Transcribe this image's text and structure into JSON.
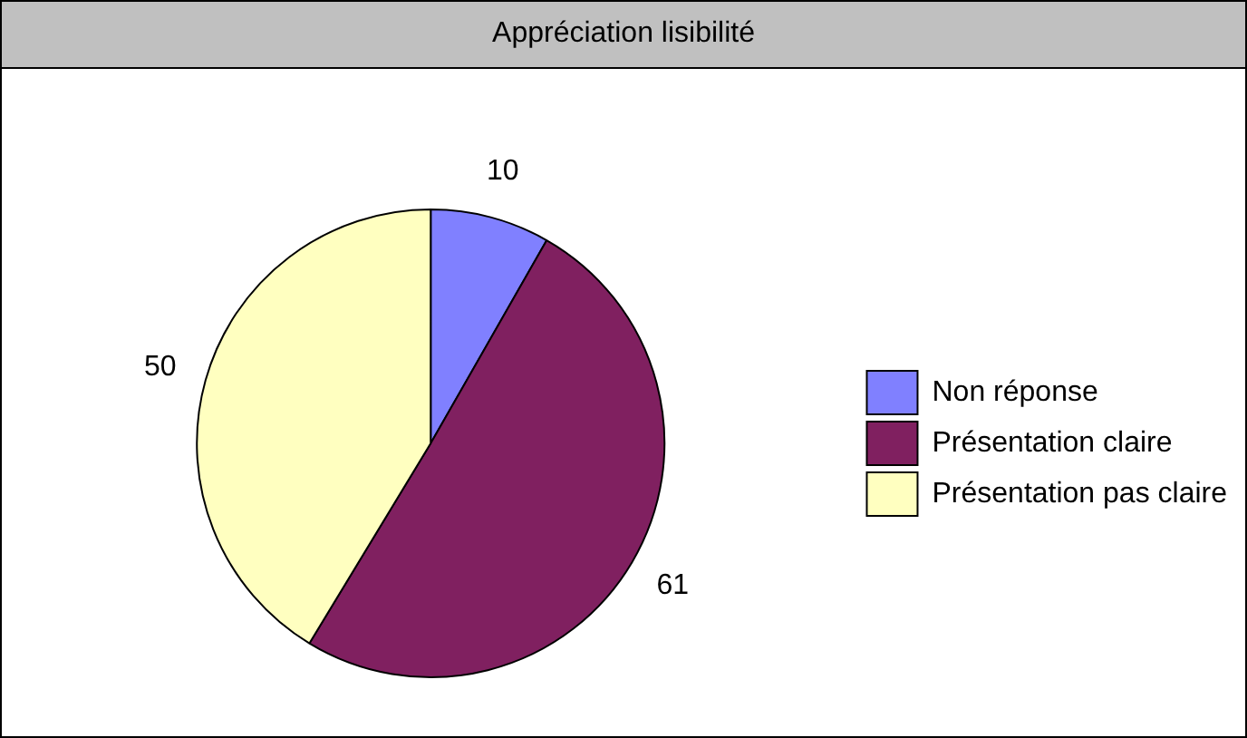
{
  "chart_data": {
    "type": "pie",
    "title": "Appréciation lisibilité",
    "categories": [
      "Non réponse",
      "Présentation claire",
      "Présentation pas claire"
    ],
    "values": [
      10,
      61,
      50
    ],
    "colors": [
      "#8080ff",
      "#802060",
      "#ffffc0"
    ],
    "data_labels": true,
    "legend": "right"
  }
}
